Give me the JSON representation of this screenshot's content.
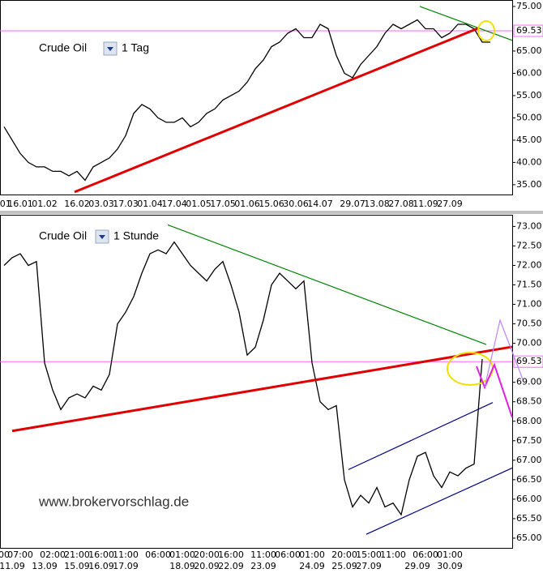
{
  "chart_data": [
    {
      "type": "line",
      "instrument": "Crude Oil",
      "period": "1 Tag",
      "color": "#000000",
      "categories": [
        ".01",
        null,
        "16.01",
        null,
        null,
        "01.02",
        null,
        null,
        null,
        "16.02",
        null,
        null,
        "03.03",
        null,
        null,
        "17.03",
        null,
        null,
        "01.04",
        null,
        null,
        "17.04",
        null,
        null,
        "01.05",
        null,
        null,
        "17.05",
        null,
        null,
        "01.06",
        null,
        null,
        "15.06",
        null,
        null,
        "30.06",
        null,
        null,
        "14.07",
        null,
        null,
        null,
        "29.07",
        null,
        null,
        "13.08",
        null,
        null,
        "27.08",
        null,
        null,
        "11.09",
        null,
        null,
        "27.09",
        null,
        null,
        null,
        null,
        null
      ],
      "values": [
        48,
        45,
        42,
        40,
        39,
        39,
        38,
        38,
        37,
        38,
        36,
        39,
        40,
        41,
        43,
        46,
        51,
        53,
        52,
        50,
        49,
        49,
        50,
        48,
        49,
        51,
        52,
        54,
        55,
        56,
        58,
        61,
        63,
        66,
        67,
        69,
        70,
        68,
        68,
        71,
        70,
        64,
        60,
        59,
        62,
        64,
        66,
        69,
        71,
        70,
        71,
        72,
        70,
        70,
        68,
        69,
        71,
        71,
        70,
        67,
        67
      ],
      "ylim": [
        32.8,
        76.45
      ],
      "yticks": [
        {
          "value": 35,
          "label": "35.00"
        },
        {
          "value": 40,
          "label": "40.00"
        },
        {
          "value": 45,
          "label": "45.00"
        },
        {
          "value": 50,
          "label": "50.00"
        },
        {
          "value": 55,
          "label": "55.00"
        },
        {
          "value": 60,
          "label": "60.00"
        },
        {
          "value": 65,
          "label": "65.00"
        },
        {
          "value": 75,
          "label": "75.00"
        }
      ],
      "ref_line": {
        "value": 69.53,
        "color": "#ff66ff"
      },
      "lines": [
        {
          "color": "#e00000",
          "start": [
            8.7,
            33.36
          ],
          "end": [
            58.5,
            70.1
          ]
        },
        {
          "color": "#008000",
          "start": [
            51.3,
            75.0
          ],
          "end": [
            62.7,
            67.4
          ]
        }
      ]
    },
    {
      "type": "line",
      "instrument": "Crude Oil",
      "period": "1 Stunde",
      "color": "#000000",
      "categories": [
        "00",
        null,
        "07:00",
        null,
        null,
        null,
        "02:00",
        null,
        null,
        "21:00",
        null,
        null,
        "16:00",
        null,
        null,
        "11:00",
        null,
        null,
        null,
        "06:00",
        null,
        null,
        "01:00",
        null,
        null,
        "20:00",
        null,
        null,
        "16:00",
        null,
        null,
        null,
        "11:00",
        null,
        null,
        "06:00",
        null,
        null,
        "01:00",
        null,
        null,
        null,
        "20:00",
        null,
        null,
        "15:00",
        null,
        null,
        "11:00",
        null,
        null,
        null,
        "06:00",
        null,
        null,
        "01:00",
        null,
        null,
        null,
        null
      ],
      "date_labels": [
        null,
        "11.09",
        null,
        null,
        null,
        "13.09",
        null,
        null,
        null,
        "15.09",
        null,
        null,
        "16.09",
        null,
        null,
        "17.09",
        null,
        null,
        null,
        null,
        null,
        null,
        "18.09",
        null,
        null,
        "20.09",
        null,
        null,
        "22.09",
        null,
        null,
        null,
        "23.09",
        null,
        null,
        null,
        null,
        null,
        "24.09",
        null,
        null,
        null,
        "25.09",
        null,
        null,
        "27.09",
        null,
        null,
        null,
        null,
        null,
        "29.09",
        null,
        null,
        null,
        "30.09",
        null,
        null,
        null,
        null
      ],
      "values": [
        72.0,
        72.2,
        72.3,
        72.0,
        72.1,
        69.5,
        68.8,
        68.3,
        68.6,
        68.7,
        68.6,
        68.9,
        68.8,
        69.2,
        70.5,
        70.8,
        71.2,
        71.8,
        72.3,
        72.4,
        72.3,
        72.6,
        72.3,
        72.0,
        71.8,
        71.6,
        71.9,
        72.1,
        71.5,
        70.8,
        69.7,
        69.9,
        70.6,
        71.5,
        71.8,
        71.6,
        71.4,
        71.6,
        69.5,
        68.5,
        68.3,
        68.4,
        66.5,
        65.8,
        66.1,
        65.9,
        66.3,
        65.8,
        65.9,
        65.6,
        66.5,
        67.1,
        67.2,
        66.6,
        66.3,
        66.7,
        66.6,
        66.8,
        66.9,
        69.6
      ],
      "ylim": [
        64.75,
        73.3
      ],
      "yticks": [
        {
          "value": 65,
          "label": "65.00"
        },
        {
          "value": 65.5,
          "label": "65.50"
        },
        {
          "value": 66,
          "label": "66.00"
        },
        {
          "value": 66.5,
          "label": "66.50"
        },
        {
          "value": 67,
          "label": "67.00"
        },
        {
          "value": 67.5,
          "label": "67.50"
        },
        {
          "value": 68,
          "label": "68.00"
        },
        {
          "value": 68.5,
          "label": "68.50"
        },
        {
          "value": 69,
          "label": "69.00"
        },
        {
          "value": 70,
          "label": "70.00"
        },
        {
          "value": 70.5,
          "label": "70.50"
        },
        {
          "value": 71,
          "label": "71.00"
        },
        {
          "value": 71.5,
          "label": "71.50"
        },
        {
          "value": 72,
          "label": "72.00"
        },
        {
          "value": 72.5,
          "label": "72.50"
        },
        {
          "value": 73,
          "label": "73.00"
        }
      ],
      "ref_line": {
        "value": 69.53,
        "color": "#ff66ff"
      },
      "lines": [
        {
          "color": "#e00000",
          "start": [
            1,
            67.75
          ],
          "end": [
            62.7,
            69.91
          ]
        },
        {
          "color": "#008000",
          "start": [
            20.2,
            73.04
          ],
          "end": [
            59.5,
            69.97
          ]
        },
        {
          "color": "#000080",
          "start": [
            42.5,
            66.76
          ],
          "end": [
            60.3,
            68.48
          ]
        },
        {
          "color": "#000080",
          "start": [
            44.7,
            65.1
          ],
          "end": [
            62.7,
            66.8
          ]
        }
      ]
    }
  ],
  "watermark": "www.brokervorschlag.de"
}
